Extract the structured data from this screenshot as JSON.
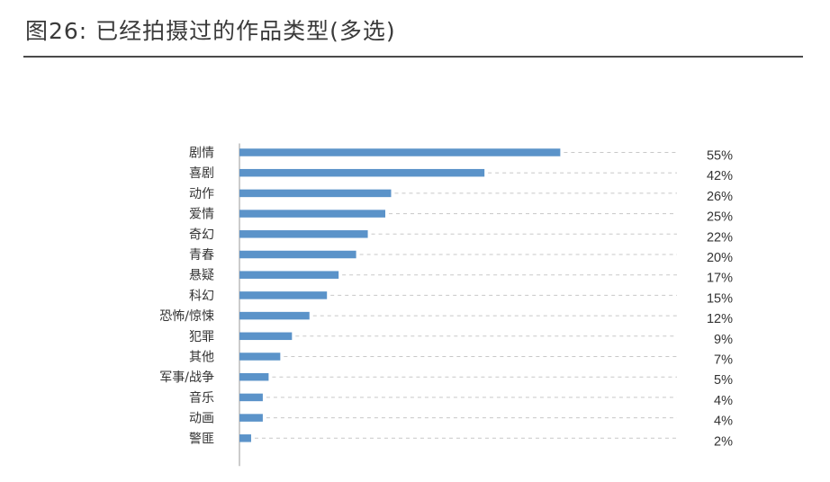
{
  "title": "图26: 已经拍摄过的作品类型(多选)",
  "colors": {
    "bar": "#5b93c9",
    "axis": "#9a9a9a",
    "grid": "#c8c8c8",
    "text": "#333333"
  },
  "chart_data": {
    "type": "bar",
    "orientation": "horizontal",
    "unit": "%",
    "categories": [
      "剧情",
      "喜剧",
      "动作",
      "爱情",
      "奇幻",
      "青春",
      "悬疑",
      "科幻",
      "恐怖/惊悚",
      "犯罪",
      "其他",
      "军事/战争",
      "音乐",
      "动画",
      "警匪"
    ],
    "values": [
      55,
      42,
      26,
      25,
      22,
      20,
      17,
      15,
      12,
      9,
      7,
      5,
      4,
      4,
      2
    ],
    "value_labels": [
      "55%",
      "42%",
      "26%",
      "25%",
      "22%",
      "20%",
      "17%",
      "15%",
      "12%",
      "9%",
      "7%",
      "5%",
      "4%",
      "4%",
      "2%"
    ],
    "xlim": [
      0,
      75
    ],
    "grid": "dashed horizontal guide per bar",
    "legend": "none"
  }
}
